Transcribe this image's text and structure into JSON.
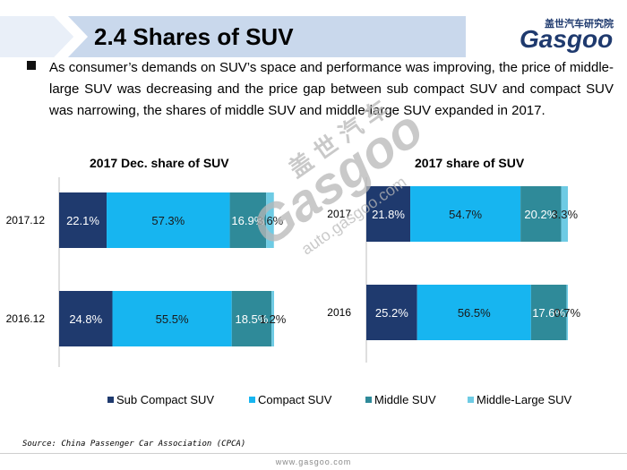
{
  "header": {
    "title": "2.4 Shares of SUV"
  },
  "logo": {
    "cn_text": "盖世汽车研究院",
    "wordmark": "Gasgoo"
  },
  "body": {
    "paragraph": "As consumer’s demands on SUV’s space and performance was improving, the price of middle-large SUV was decreasing and the price gap between sub compact SUV and compact SUV was narrowing, the shares of middle SUV and middle-large SUV expanded in 2017."
  },
  "watermark": {
    "cn": "盖世汽车",
    "main": "Gasgoo",
    "url": "auto.gasgoo.com"
  },
  "colors": {
    "header_band": "#c9d8ec",
    "header_chevron": "#e9eff8",
    "sub_compact": "#1f3a6e",
    "compact": "#17b5f0",
    "middle": "#2f8a99",
    "middle_large": "#6ecbe4",
    "axis": "#bfbfbf"
  },
  "chart_data": [
    {
      "type": "bar",
      "orientation": "horizontal",
      "stacked": "percent",
      "title": "2017 Dec. share of SUV",
      "categories": [
        "2017.12",
        "2016.12"
      ],
      "series": [
        {
          "name": "Sub Compact SUV",
          "values": [
            22.1,
            24.8
          ],
          "labels": [
            "22.1%",
            "24.8%"
          ]
        },
        {
          "name": "Compact SUV",
          "values": [
            57.3,
            55.5
          ],
          "labels": [
            "57.3%",
            "55.5%"
          ]
        },
        {
          "name": "Middle SUV",
          "values": [
            16.9,
            18.5
          ],
          "labels": [
            "16.9%",
            "18.5%"
          ]
        },
        {
          "name": "Middle-Large SUV",
          "values": [
            3.6,
            1.2
          ],
          "labels": [
            "3.6%",
            "1.2%"
          ]
        }
      ],
      "xlim": [
        0,
        100
      ],
      "grid": false
    },
    {
      "type": "bar",
      "orientation": "horizontal",
      "stacked": "percent",
      "title": "2017 share of SUV",
      "categories": [
        "2017",
        "2016"
      ],
      "series": [
        {
          "name": "Sub Compact SUV",
          "values": [
            21.8,
            25.2
          ],
          "labels": [
            "21.8%",
            "25.2%"
          ]
        },
        {
          "name": "Compact SUV",
          "values": [
            54.7,
            56.5
          ],
          "labels": [
            "54.7%",
            "56.5%"
          ]
        },
        {
          "name": "Middle SUV",
          "values": [
            20.2,
            17.6
          ],
          "labels": [
            "20.2%",
            "17.6%"
          ]
        },
        {
          "name": "Middle-Large SUV",
          "values": [
            3.3,
            0.7
          ],
          "labels": [
            "3.3%",
            "0.7%"
          ]
        }
      ],
      "xlim": [
        0,
        100
      ],
      "grid": false
    }
  ],
  "legend": {
    "placement": "bottom",
    "items": [
      "Sub Compact SUV",
      "Compact SUV",
      "Middle SUV",
      "Middle-Large SUV"
    ]
  },
  "source": "Source: China Passenger Car Association (CPCA)",
  "footer": {
    "url": "www.gasgoo.com"
  }
}
